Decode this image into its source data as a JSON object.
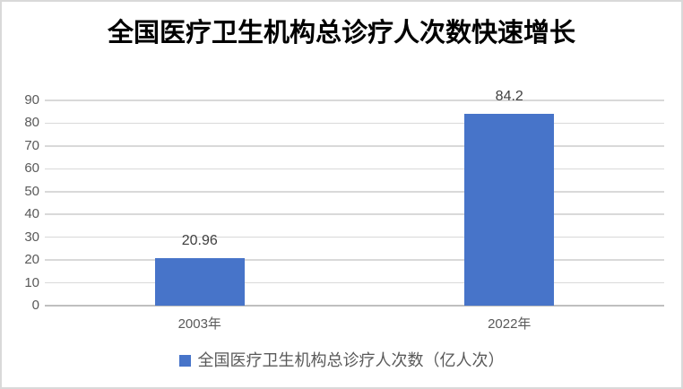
{
  "window": {
    "background": "#FFFFFF",
    "border_color": "#D9D9D9"
  },
  "chart_data": {
    "type": "bar",
    "title": "全国医疗卫生机构总诊疗人次数快速增长",
    "categories": [
      "2003年",
      "2022年"
    ],
    "series": [
      {
        "name": "全国医疗卫生机构总诊疗人次数（亿人次）",
        "values": [
          20.96,
          84.2
        ],
        "color": "#4774C9"
      }
    ],
    "data_labels": [
      "20.96",
      "84.2"
    ],
    "xlabel": "",
    "ylabel": "",
    "ylim": [
      0,
      90
    ],
    "ytick_step": 10,
    "yticks": [
      0,
      10,
      20,
      30,
      40,
      50,
      60,
      70,
      80,
      90
    ],
    "grid": true,
    "legend_position": "bottom",
    "styles": {
      "gridline_color": "#D9D9D9",
      "axis_line_color": "#BFBFBF",
      "tick_label_color": "#595959",
      "data_label_color": "#3F3F3F",
      "title_color": "#000000",
      "legend_text_color": "#595959"
    }
  },
  "legend": {
    "label": "全国医疗卫生机构总诊疗人次数（亿人次）",
    "swatch_color": "#4774C9"
  }
}
